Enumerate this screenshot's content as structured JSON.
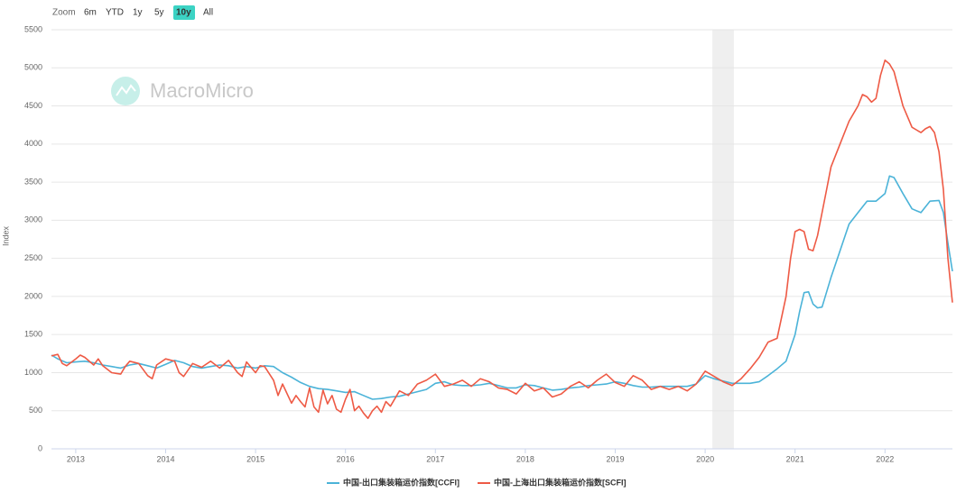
{
  "chart_data": {
    "type": "line",
    "range_selector": {
      "label": "Zoom",
      "buttons": [
        "6m",
        "YTD",
        "1y",
        "5y",
        "10y",
        "All"
      ],
      "selected": "10y"
    },
    "watermark": "MacroMicro",
    "y_label": "Index",
    "xlim": [
      2012.73,
      2022.75
    ],
    "xticks": [
      2013,
      2014,
      2015,
      2016,
      2017,
      2018,
      2019,
      2020,
      2021,
      2022
    ],
    "ylim": [
      0,
      5500
    ],
    "yticks": [
      0,
      500,
      1000,
      1500,
      2000,
      2500,
      3000,
      3500,
      4000,
      4500,
      5000,
      5500
    ],
    "grid": true,
    "legend": "bottom",
    "shaded_range": [
      2020.08,
      2020.32
    ],
    "series": [
      {
        "name": "中国-出口集装箱运价指数[CCFI]",
        "color": "#4bb3d8",
        "x": [
          2012.73,
          2012.8,
          2012.9,
          2013.0,
          2013.1,
          2013.2,
          2013.3,
          2013.4,
          2013.5,
          2013.6,
          2013.7,
          2013.8,
          2013.9,
          2014.0,
          2014.1,
          2014.2,
          2014.3,
          2014.4,
          2014.5,
          2014.6,
          2014.7,
          2014.8,
          2014.9,
          2015.0,
          2015.1,
          2015.2,
          2015.3,
          2015.4,
          2015.5,
          2015.6,
          2015.7,
          2015.8,
          2015.9,
          2016.0,
          2016.1,
          2016.2,
          2016.3,
          2016.4,
          2016.5,
          2016.6,
          2016.7,
          2016.8,
          2016.9,
          2017.0,
          2017.1,
          2017.2,
          2017.3,
          2017.4,
          2017.5,
          2017.6,
          2017.7,
          2017.8,
          2017.9,
          2018.0,
          2018.1,
          2018.2,
          2018.3,
          2018.4,
          2018.5,
          2018.6,
          2018.7,
          2018.8,
          2018.9,
          2019.0,
          2019.1,
          2019.2,
          2019.3,
          2019.4,
          2019.5,
          2019.6,
          2019.7,
          2019.8,
          2019.9,
          2020.0,
          2020.1,
          2020.2,
          2020.3,
          2020.4,
          2020.5,
          2020.6,
          2020.7,
          2020.8,
          2020.9,
          2021.0,
          2021.05,
          2021.1,
          2021.15,
          2021.2,
          2021.25,
          2021.3,
          2021.4,
          2021.5,
          2021.6,
          2021.7,
          2021.8,
          2021.9,
          2022.0,
          2022.05,
          2022.1,
          2022.2,
          2022.3,
          2022.4,
          2022.5,
          2022.6,
          2022.65,
          2022.7,
          2022.75
        ],
        "values": [
          1230,
          1180,
          1130,
          1140,
          1150,
          1130,
          1100,
          1080,
          1060,
          1100,
          1120,
          1090,
          1060,
          1110,
          1160,
          1130,
          1080,
          1060,
          1080,
          1100,
          1090,
          1060,
          1080,
          1060,
          1090,
          1080,
          1000,
          940,
          870,
          820,
          790,
          780,
          760,
          740,
          750,
          700,
          650,
          660,
          680,
          690,
          720,
          750,
          780,
          860,
          880,
          840,
          830,
          830,
          840,
          860,
          830,
          800,
          800,
          840,
          830,
          800,
          770,
          780,
          800,
          810,
          830,
          840,
          850,
          880,
          860,
          830,
          810,
          810,
          820,
          820,
          820,
          820,
          850,
          960,
          920,
          890,
          860,
          860,
          860,
          880,
          960,
          1050,
          1150,
          1500,
          1800,
          2050,
          2060,
          1900,
          1850,
          1860,
          2250,
          2600,
          2950,
          3100,
          3250,
          3250,
          3350,
          3580,
          3560,
          3350,
          3150,
          3100,
          3250,
          3260,
          3100,
          2700,
          2330
        ]
      },
      {
        "name": "中国-上海出口集装箱运价指数[SCFI]",
        "color": "#ee5a45",
        "x": [
          2012.73,
          2012.8,
          2012.85,
          2012.9,
          2013.0,
          2013.05,
          2013.1,
          2013.2,
          2013.25,
          2013.3,
          2013.4,
          2013.5,
          2013.55,
          2013.6,
          2013.7,
          2013.8,
          2013.85,
          2013.9,
          2014.0,
          2014.1,
          2014.15,
          2014.2,
          2014.3,
          2014.4,
          2014.5,
          2014.6,
          2014.7,
          2014.8,
          2014.85,
          2014.9,
          2015.0,
          2015.05,
          2015.1,
          2015.2,
          2015.25,
          2015.3,
          2015.4,
          2015.45,
          2015.5,
          2015.55,
          2015.6,
          2015.65,
          2015.7,
          2015.75,
          2015.8,
          2015.85,
          2015.9,
          2015.95,
          2016.0,
          2016.05,
          2016.1,
          2016.15,
          2016.2,
          2016.25,
          2016.3,
          2016.35,
          2016.4,
          2016.45,
          2016.5,
          2016.6,
          2016.7,
          2016.8,
          2016.9,
          2017.0,
          2017.1,
          2017.2,
          2017.3,
          2017.4,
          2017.5,
          2017.6,
          2017.7,
          2017.8,
          2017.9,
          2018.0,
          2018.1,
          2018.2,
          2018.3,
          2018.4,
          2018.5,
          2018.6,
          2018.7,
          2018.8,
          2018.9,
          2019.0,
          2019.1,
          2019.2,
          2019.3,
          2019.4,
          2019.5,
          2019.6,
          2019.7,
          2019.8,
          2019.9,
          2020.0,
          2020.1,
          2020.2,
          2020.3,
          2020.4,
          2020.5,
          2020.6,
          2020.7,
          2020.8,
          2020.9,
          2020.95,
          2021.0,
          2021.05,
          2021.1,
          2021.15,
          2021.2,
          2021.25,
          2021.3,
          2021.35,
          2021.4,
          2021.5,
          2021.6,
          2021.7,
          2021.75,
          2021.8,
          2021.85,
          2021.9,
          2021.95,
          2022.0,
          2022.05,
          2022.1,
          2022.2,
          2022.3,
          2022.4,
          2022.45,
          2022.5,
          2022.55,
          2022.6,
          2022.65,
          2022.7,
          2022.75
        ],
        "values": [
          1220,
          1240,
          1120,
          1090,
          1180,
          1230,
          1200,
          1100,
          1180,
          1090,
          1000,
          980,
          1080,
          1150,
          1120,
          960,
          920,
          1100,
          1180,
          1150,
          1000,
          950,
          1120,
          1070,
          1150,
          1060,
          1160,
          1000,
          950,
          1140,
          1000,
          1090,
          1080,
          900,
          700,
          850,
          600,
          700,
          620,
          550,
          800,
          550,
          480,
          770,
          590,
          700,
          520,
          480,
          650,
          780,
          500,
          560,
          470,
          400,
          500,
          560,
          480,
          620,
          560,
          760,
          700,
          850,
          900,
          980,
          820,
          850,
          900,
          820,
          920,
          880,
          800,
          780,
          720,
          860,
          760,
          800,
          680,
          720,
          820,
          880,
          800,
          900,
          980,
          870,
          820,
          960,
          900,
          780,
          820,
          780,
          820,
          760,
          850,
          1020,
          950,
          880,
          830,
          920,
          1050,
          1200,
          1400,
          1450,
          2000,
          2500,
          2850,
          2880,
          2850,
          2620,
          2600,
          2800,
          3100,
          3400,
          3700,
          4000,
          4300,
          4500,
          4650,
          4620,
          4550,
          4600,
          4900,
          5100,
          5050,
          4950,
          4500,
          4220,
          4150,
          4200,
          4230,
          4150,
          3900,
          3400,
          2500,
          1920
        ]
      }
    ]
  }
}
